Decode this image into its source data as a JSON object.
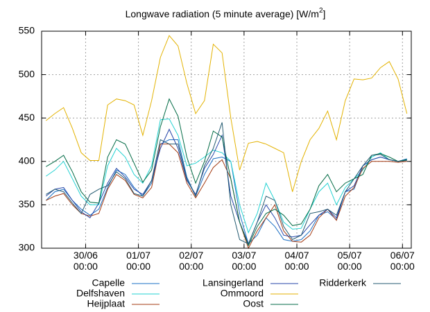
{
  "chart_data": {
    "type": "line",
    "title": "Longwave  radiation (5 minute average) [W/m",
    "title_superscript": "2",
    "title_end": "]",
    "x": [
      "29/06 06:00",
      "29/06 10:00",
      "29/06 14:00",
      "29/06 18:00",
      "29/06 22:00",
      "30/06 02:00",
      "30/06 06:00",
      "30/06 10:00",
      "30/06 14:00",
      "30/06 18:00",
      "30/06 22:00",
      "01/07 02:00",
      "01/07 06:00",
      "01/07 10:00",
      "01/07 14:00",
      "01/07 18:00",
      "01/07 22:00",
      "02/07 02:00",
      "02/07 06:00",
      "02/07 10:00",
      "02/07 14:00",
      "02/07 18:00",
      "02/07 22:00",
      "03/07 02:00",
      "03/07 06:00",
      "03/07 10:00",
      "03/07 14:00",
      "03/07 18:00",
      "03/07 22:00",
      "04/07 02:00",
      "04/07 06:00",
      "04/07 10:00",
      "04/07 14:00",
      "04/07 18:00",
      "04/07 22:00",
      "05/07 02:00",
      "05/07 06:00",
      "05/07 10:00",
      "05/07 14:00",
      "05/07 18:00",
      "05/07 22:00",
      "06/07 02:00"
    ],
    "xlim": [
      "29/06 04:00",
      "06/07 04:00"
    ],
    "xticks": [
      "30/06 00:00",
      "01/07 00:00",
      "02/07 00:00",
      "03/07 00:00",
      "04/07 00:00",
      "05/07 00:00",
      "06/07 00:00"
    ],
    "ylim": [
      300,
      550
    ],
    "yticks": [
      300,
      350,
      400,
      450,
      500,
      550
    ],
    "grid": true,
    "legend": "bottom",
    "series": [
      {
        "name": "Capelle",
        "color": "#1a6fc4",
        "values": [
          355,
          365,
          368,
          355,
          345,
          338,
          345,
          370,
          390,
          385,
          370,
          360,
          375,
          420,
          425,
          425,
          382,
          360,
          385,
          403,
          405,
          400,
          340,
          305,
          315,
          335,
          325,
          310,
          308,
          310,
          320,
          338,
          342,
          333,
          365,
          368,
          395,
          402,
          405,
          402,
          400,
          403
        ]
      },
      {
        "name": "Delfshaven",
        "color": "#22d2d2",
        "values": [
          383,
          390,
          400,
          380,
          360,
          350,
          350,
          395,
          415,
          405,
          385,
          375,
          395,
          448,
          449,
          430,
          395,
          398,
          405,
          413,
          410,
          400,
          350,
          318,
          340,
          375,
          355,
          330,
          322,
          323,
          345,
          365,
          375,
          350,
          370,
          380,
          390,
          405,
          410,
          402,
          400,
          402
        ]
      },
      {
        "name": "Heijplaat",
        "color": "#a33a12",
        "values": [
          355,
          360,
          363,
          350,
          340,
          337,
          340,
          368,
          385,
          378,
          362,
          358,
          370,
          420,
          420,
          410,
          375,
          358,
          375,
          393,
          402,
          380,
          330,
          300,
          320,
          335,
          350,
          320,
          308,
          307,
          315,
          335,
          345,
          332,
          360,
          370,
          392,
          400,
          400,
          400,
          399,
          400
        ]
      },
      {
        "name": "Lansingerland",
        "color": "#2444a8",
        "values": [
          360,
          368,
          370,
          355,
          342,
          335,
          352,
          375,
          392,
          382,
          368,
          362,
          378,
          415,
          437,
          415,
          378,
          362,
          392,
          408,
          430,
          360,
          330,
          305,
          330,
          350,
          335,
          315,
          313,
          315,
          327,
          338,
          345,
          335,
          365,
          372,
          395,
          402,
          405,
          402,
          400,
          402
        ]
      },
      {
        "name": "Ommoord",
        "color": "#e3b200",
        "values": [
          447,
          455,
          462,
          438,
          410,
          401,
          401,
          465,
          472,
          470,
          465,
          430,
          470,
          520,
          545,
          533,
          490,
          455,
          470,
          535,
          525,
          450,
          390,
          421,
          423,
          420,
          415,
          410,
          365,
          400,
          425,
          438,
          458,
          425,
          470,
          495,
          494,
          496,
          508,
          515,
          495,
          455
        ]
      },
      {
        "name": "Oost",
        "color": "#006a44",
        "values": [
          394,
          400,
          407,
          388,
          365,
          353,
          352,
          405,
          425,
          420,
          398,
          376,
          390,
          440,
          472,
          452,
          405,
          375,
          400,
          435,
          428,
          380,
          330,
          303,
          325,
          340,
          345,
          338,
          326,
          328,
          345,
          372,
          385,
          365,
          375,
          380,
          385,
          407,
          409,
          405,
          400,
          402
        ]
      },
      {
        "name": "Ridderkerk",
        "color": "#235a70",
        "values": [
          362,
          368,
          365,
          352,
          340,
          362,
          368,
          372,
          388,
          380,
          363,
          360,
          378,
          425,
          420,
          420,
          380,
          360,
          395,
          415,
          445,
          350,
          310,
          305,
          330,
          360,
          355,
          325,
          310,
          315,
          340,
          342,
          345,
          338,
          365,
          380,
          395,
          407,
          408,
          402,
          400,
          401
        ]
      }
    ]
  }
}
